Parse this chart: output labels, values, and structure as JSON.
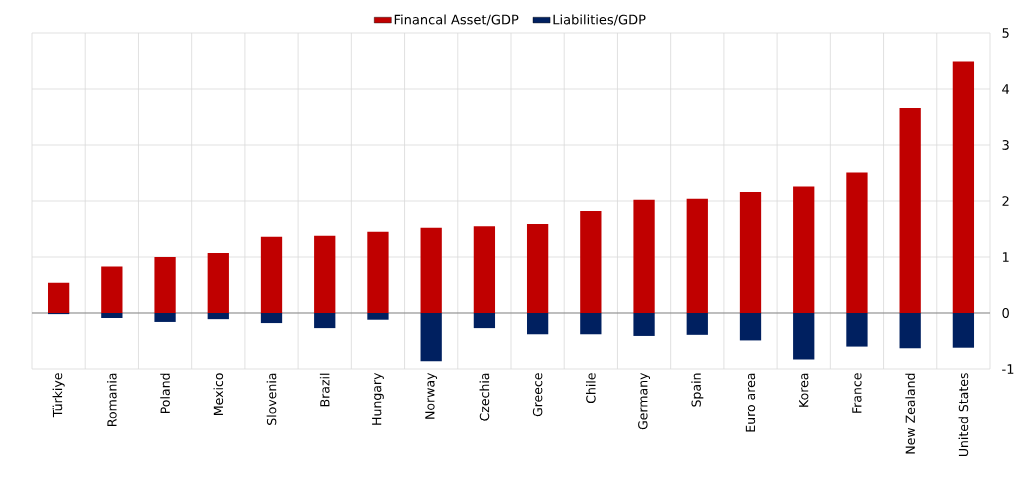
{
  "chart_data": {
    "type": "bar",
    "categories": [
      "Türkiye",
      "Romania",
      "Poland",
      "Mexico",
      "Slovenia",
      "Brazil",
      "Hungary",
      "Norway",
      "Czechia",
      "Greece",
      "Chile",
      "Germany",
      "Spain",
      "Euro area",
      "Korea",
      "France",
      "New Zealand",
      "United States"
    ],
    "series": [
      {
        "name": "Financal Asset/GDP",
        "color": "#c00000",
        "values": [
          0.54,
          0.83,
          1.0,
          1.07,
          1.36,
          1.38,
          1.45,
          1.52,
          1.55,
          1.59,
          1.82,
          2.02,
          2.04,
          2.16,
          2.26,
          2.51,
          3.66,
          4.49
        ]
      },
      {
        "name": "Liabilities/GDP",
        "color": "#002060",
        "values": [
          -0.02,
          -0.09,
          -0.16,
          -0.11,
          -0.18,
          -0.27,
          -0.12,
          -0.86,
          -0.27,
          -0.38,
          -0.38,
          -0.41,
          -0.39,
          -0.49,
          -0.83,
          -0.6,
          -0.63,
          -0.62
        ]
      }
    ],
    "stacked": true,
    "ylim": [
      -1,
      5
    ],
    "yticks": [
      -1,
      0,
      1,
      2,
      3,
      4,
      5
    ],
    "grid": true,
    "legend": "top"
  }
}
